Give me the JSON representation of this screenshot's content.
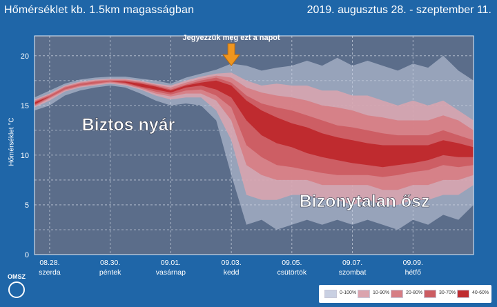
{
  "header": {
    "title": "Hőmérséklet kb. 1.5km magasságban",
    "period": "2019. augusztus 28. - szeptember 11."
  },
  "logo": {
    "text": "OMSZ"
  },
  "colors": {
    "background": "#1f66a8",
    "plot_bg": "#5b6d8a",
    "arrow": "#f0961e",
    "band_0_100": "#c9d0e2",
    "band_10_90": "#dba4ae",
    "band_20_80": "#d67d84",
    "band_30_70": "#cc5c62",
    "band_40_60": "#bf2b2f"
  },
  "chart_data": {
    "type": "area",
    "title": "Hőmérséklet kb. 1.5km magasságban",
    "subtitle": "2019. augusztus 28. - szeptember 11.",
    "ylabel": "Hőmérséklet °C",
    "xlabel": "",
    "ylim": [
      0,
      22
    ],
    "yticks": [
      0,
      5,
      10,
      15,
      20
    ],
    "xlim": [
      0,
      14.5
    ],
    "grid": true,
    "legend_position": "bottom-right",
    "x_ticks": [
      {
        "x": 0.5,
        "date": "08.28.",
        "day": "szerda"
      },
      {
        "x": 2.5,
        "date": "08.30.",
        "day": "péntek"
      },
      {
        "x": 4.5,
        "date": "09.01.",
        "day": "vasárnap"
      },
      {
        "x": 6.5,
        "date": "09.03.",
        "day": "kedd"
      },
      {
        "x": 8.5,
        "date": "09.05.",
        "day": "csütörtök"
      },
      {
        "x": 10.5,
        "date": "09.07.",
        "day": "szombat"
      },
      {
        "x": 12.5,
        "date": "09.09.",
        "day": "hétfő"
      }
    ],
    "x": [
      0,
      0.5,
      1,
      1.5,
      2,
      2.5,
      3,
      3.5,
      4,
      4.5,
      5,
      5.5,
      6,
      6.5,
      7,
      7.5,
      8,
      8.5,
      9,
      9.5,
      10,
      10.5,
      11,
      11.5,
      12,
      12.5,
      13,
      13.5,
      14,
      14.5
    ],
    "series": [
      {
        "name": "0-100%",
        "lower": [
          14.5,
          15.0,
          16.0,
          16.5,
          16.8,
          17.0,
          16.8,
          16.2,
          15.5,
          15.0,
          15.2,
          15.0,
          13.5,
          8.0,
          3.0,
          3.5,
          2.5,
          3.0,
          3.5,
          3.0,
          3.5,
          3.0,
          3.5,
          3.0,
          2.5,
          3.5,
          3.0,
          4.0,
          3.5,
          5.0
        ],
        "upper": [
          15.8,
          16.5,
          17.2,
          17.6,
          17.8,
          17.9,
          17.9,
          17.7,
          17.5,
          17.2,
          17.8,
          18.2,
          18.6,
          19.2,
          19.0,
          18.5,
          18.8,
          19.0,
          19.5,
          19.0,
          19.8,
          19.0,
          19.5,
          19.0,
          18.5,
          19.2,
          18.8,
          20.0,
          18.5,
          17.5
        ]
      },
      {
        "name": "10-90%",
        "lower": [
          14.8,
          15.5,
          16.4,
          16.8,
          17.0,
          17.2,
          17.0,
          16.6,
          16.0,
          15.6,
          15.8,
          15.8,
          14.5,
          11.5,
          6.0,
          5.5,
          5.5,
          6.0,
          6.0,
          5.5,
          5.5,
          5.0,
          5.5,
          5.0,
          5.0,
          5.5,
          5.5,
          6.0,
          6.0,
          7.0
        ],
        "upper": [
          15.6,
          16.2,
          17.0,
          17.4,
          17.6,
          17.7,
          17.7,
          17.5,
          17.2,
          17.0,
          17.5,
          17.9,
          18.2,
          18.3,
          17.5,
          17.0,
          17.2,
          17.0,
          17.0,
          16.5,
          16.5,
          16.0,
          16.0,
          15.5,
          15.0,
          15.5,
          15.0,
          15.5,
          14.5,
          13.5
        ]
      },
      {
        "name": "20-80%",
        "lower": [
          14.9,
          15.7,
          16.5,
          16.9,
          17.1,
          17.3,
          17.1,
          16.7,
          16.2,
          15.9,
          16.2,
          16.2,
          15.5,
          13.5,
          9.0,
          8.0,
          7.5,
          7.5,
          7.5,
          7.0,
          7.0,
          7.0,
          7.0,
          6.5,
          6.5,
          7.0,
          7.0,
          7.5,
          7.5,
          8.0
        ],
        "upper": [
          15.5,
          16.1,
          16.9,
          17.3,
          17.5,
          17.6,
          17.6,
          17.4,
          17.1,
          16.8,
          17.3,
          17.7,
          18.0,
          17.8,
          16.8,
          16.3,
          16.0,
          15.8,
          15.5,
          15.0,
          14.8,
          14.5,
          14.0,
          13.8,
          13.5,
          13.5,
          13.5,
          14.0,
          13.5,
          12.5
        ]
      },
      {
        "name": "30-70%",
        "lower": [
          15.0,
          15.8,
          16.6,
          17.0,
          17.2,
          17.4,
          17.2,
          16.8,
          16.4,
          16.1,
          16.5,
          16.6,
          16.0,
          14.8,
          11.0,
          9.8,
          9.0,
          8.8,
          8.5,
          8.2,
          8.0,
          8.0,
          8.0,
          7.8,
          8.0,
          8.3,
          8.5,
          9.0,
          8.8,
          9.0
        ],
        "upper": [
          15.4,
          16.0,
          16.8,
          17.2,
          17.4,
          17.5,
          17.5,
          17.3,
          17.0,
          16.6,
          17.1,
          17.5,
          17.8,
          17.3,
          16.0,
          15.2,
          14.8,
          14.5,
          14.0,
          13.5,
          13.0,
          12.8,
          12.5,
          12.2,
          12.0,
          12.0,
          12.0,
          12.5,
          12.0,
          11.5
        ]
      },
      {
        "name": "40-60%",
        "lower": [
          15.1,
          15.9,
          16.7,
          17.1,
          17.3,
          17.4,
          17.3,
          16.9,
          16.6,
          16.3,
          16.8,
          17.0,
          16.6,
          15.8,
          13.5,
          12.0,
          11.2,
          10.8,
          10.2,
          9.8,
          9.5,
          9.2,
          9.0,
          8.8,
          9.0,
          9.2,
          9.5,
          10.0,
          9.8,
          9.8
        ],
        "upper": [
          15.3,
          15.9,
          16.7,
          17.1,
          17.3,
          17.4,
          17.4,
          17.2,
          16.9,
          16.5,
          17.0,
          17.3,
          17.5,
          17.0,
          15.5,
          14.5,
          13.8,
          13.2,
          12.8,
          12.2,
          11.8,
          11.5,
          11.2,
          11.0,
          11.0,
          11.0,
          11.0,
          11.5,
          11.2,
          10.8
        ]
      }
    ],
    "annotations": [
      {
        "text": "Jegyezzük meg ezt a napot",
        "x": 6.5,
        "y": 19.0,
        "kind": "arrow"
      },
      {
        "text": "Biztos nyár",
        "x": 3.1,
        "y": 12.5,
        "kind": "label"
      },
      {
        "text": "Bizonytalan ősz",
        "x": 10.9,
        "y": 4.8,
        "kind": "label"
      }
    ]
  },
  "legend": [
    {
      "label": "0-100%",
      "color": "#c9d0e2"
    },
    {
      "label": "10-90%",
      "color": "#dba4ae"
    },
    {
      "label": "20-80%",
      "color": "#d67d84"
    },
    {
      "label": "30-70%",
      "color": "#cc5c62"
    },
    {
      "label": "40-60%",
      "color": "#bf2b2f"
    }
  ]
}
